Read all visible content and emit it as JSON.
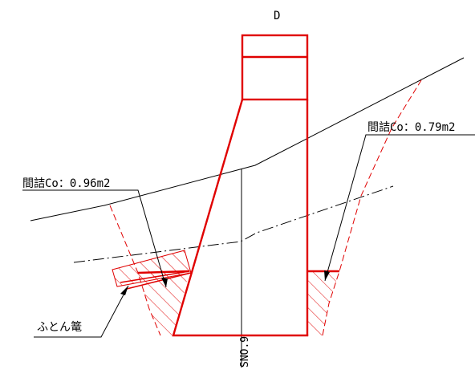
{
  "drawing": {
    "section_id": "D",
    "station": "SNO.9",
    "callout_left": "間詰Co：0.96m2",
    "callout_right": "間詰Co：0.79m2",
    "callout_gabion": "ふとん篭",
    "colors": {
      "structure": "#e00000",
      "ground": "#000000",
      "hatch": "#e00000"
    }
  }
}
